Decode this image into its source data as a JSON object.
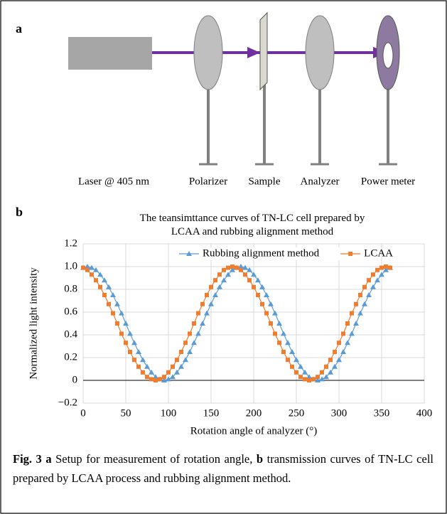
{
  "panel_a": {
    "label": "a",
    "components": [
      "Laser @ 405 nm",
      "Polarizer",
      "Sample",
      "Analyzer",
      "Power meter"
    ]
  },
  "panel_b": {
    "label": "b"
  },
  "chart_data": {
    "type": "line",
    "title": "The teansimttance curves of TN-LC cell prepared by LCAA and rubbing alignment method",
    "x_label": "Rotation angle of analyzer (°)",
    "y_label": "Normalized light intensity",
    "x": [
      0,
      5,
      10,
      15,
      20,
      25,
      30,
      35,
      40,
      45,
      50,
      55,
      60,
      65,
      70,
      75,
      80,
      85,
      90,
      95,
      100,
      105,
      110,
      115,
      120,
      125,
      130,
      135,
      140,
      145,
      150,
      155,
      160,
      165,
      170,
      175,
      180,
      185,
      190,
      195,
      200,
      205,
      210,
      215,
      220,
      225,
      230,
      235,
      240,
      245,
      250,
      255,
      260,
      265,
      270,
      275,
      280,
      285,
      290,
      295,
      300,
      305,
      310,
      315,
      320,
      325,
      330,
      335,
      340,
      345,
      350,
      355,
      360
    ],
    "series": [
      {
        "name": "Rubbing alignment method",
        "color": "#5b9bd5",
        "marker": "triangle",
        "values": [
          0.99,
          1,
          0.99,
          0.97,
          0.93,
          0.88,
          0.82,
          0.75,
          0.67,
          0.59,
          0.5,
          0.41,
          0.33,
          0.25,
          0.18,
          0.12,
          0.07,
          0.03,
          0.01,
          0,
          0.01,
          0.03,
          0.07,
          0.12,
          0.18,
          0.25,
          0.33,
          0.41,
          0.5,
          0.59,
          0.67,
          0.75,
          0.82,
          0.88,
          0.93,
          0.97,
          0.99,
          1,
          0.99,
          0.97,
          0.93,
          0.88,
          0.82,
          0.75,
          0.67,
          0.59,
          0.5,
          0.41,
          0.33,
          0.25,
          0.18,
          0.12,
          0.07,
          0.03,
          0.01,
          0,
          0.01,
          0.03,
          0.07,
          0.12,
          0.18,
          0.25,
          0.33,
          0.41,
          0.5,
          0.59,
          0.67,
          0.75,
          0.82,
          0.88,
          0.93,
          0.97,
          0.99
        ]
      },
      {
        "name": "LCAA",
        "color": "#ed7d31",
        "marker": "square",
        "values": [
          0.99,
          0.97,
          0.93,
          0.88,
          0.82,
          0.75,
          0.67,
          0.59,
          0.5,
          0.41,
          0.33,
          0.25,
          0.18,
          0.12,
          0.07,
          0.03,
          0.01,
          0,
          0.01,
          0.03,
          0.07,
          0.12,
          0.18,
          0.25,
          0.33,
          0.41,
          0.5,
          0.59,
          0.67,
          0.75,
          0.82,
          0.88,
          0.93,
          0.97,
          0.99,
          1,
          0.99,
          0.97,
          0.93,
          0.88,
          0.82,
          0.75,
          0.67,
          0.59,
          0.5,
          0.41,
          0.33,
          0.25,
          0.18,
          0.12,
          0.07,
          0.03,
          0.01,
          0,
          0.01,
          0.03,
          0.07,
          0.12,
          0.18,
          0.25,
          0.33,
          0.41,
          0.5,
          0.59,
          0.67,
          0.75,
          0.82,
          0.88,
          0.93,
          0.97,
          0.99,
          1,
          0.99
        ]
      }
    ],
    "xlim": [
      0,
      400
    ],
    "xticks": [
      0,
      50,
      100,
      150,
      200,
      250,
      300,
      350,
      400
    ],
    "ylim": [
      -0.2,
      1.2
    ],
    "yticks": [
      {
        "value": -0.2,
        "label": "−0.2"
      },
      0,
      0.2,
      0.4,
      0.6,
      0.8,
      {
        "value": 1,
        "label": "1.0"
      },
      1.2
    ],
    "grid": true,
    "legend": "top"
  },
  "caption": {
    "label": "Fig. 3",
    "part_a": "a",
    "text_a": "Setup for measurement of rotation angle,",
    "part_b": "b",
    "text_b": "transmission curves of TN-LC cell prepared by LCAA process and rubbing alignment method."
  }
}
